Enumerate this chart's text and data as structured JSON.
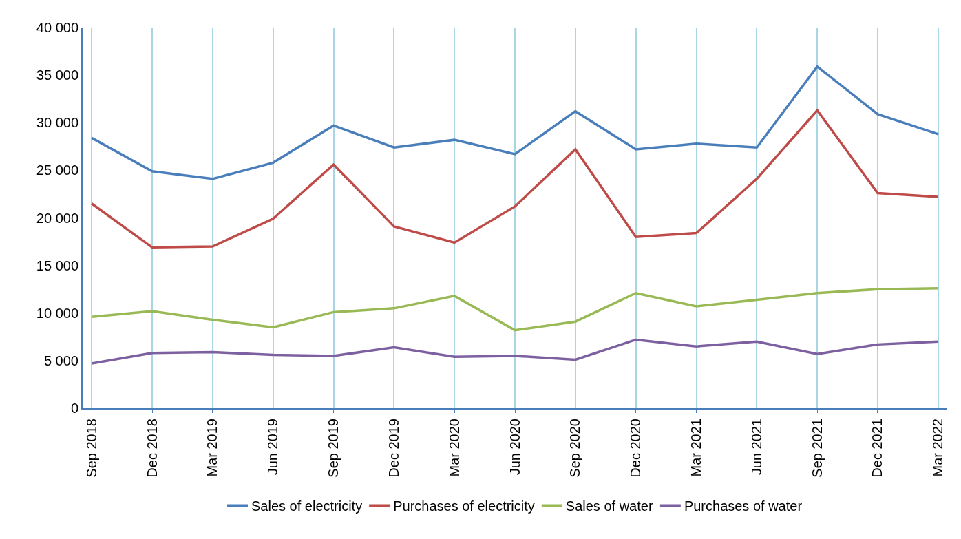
{
  "chart_data": {
    "type": "line",
    "categories": [
      "Sep 2018",
      "Dec 2018",
      "Mar 2019",
      "Jun 2019",
      "Sep 2019",
      "Dec 2019",
      "Mar 2020",
      "Jun 2020",
      "Sep 2020",
      "Dec 2020",
      "Mar 2021",
      "Jun 2021",
      "Sep 2021",
      "Dec 2021",
      "Mar 2022"
    ],
    "series": [
      {
        "name": "Sales of electricity",
        "color": "#4a7ebb",
        "values": [
          28400,
          24900,
          24100,
          25800,
          29700,
          27400,
          28200,
          26700,
          31200,
          27200,
          27800,
          27400,
          35900,
          30900,
          28800
        ]
      },
      {
        "name": "Purchases of electricity",
        "color": "#be4b48",
        "values": [
          21500,
          16900,
          17000,
          19900,
          25600,
          19100,
          17400,
          21200,
          27200,
          18000,
          18400,
          24100,
          31300,
          22600,
          22200
        ]
      },
      {
        "name": "Sales of water",
        "color": "#98b954",
        "values": [
          9600,
          10200,
          9300,
          8500,
          10100,
          10500,
          11800,
          8200,
          9100,
          12100,
          10700,
          11400,
          12100,
          12500,
          12600
        ]
      },
      {
        "name": "Purchases of water",
        "color": "#7d60a0",
        "values": [
          4700,
          5800,
          5900,
          5600,
          5500,
          6400,
          5400,
          5500,
          5100,
          7200,
          6500,
          7000,
          5700,
          6700,
          7000
        ]
      }
    ],
    "ylim": [
      0,
      40000
    ],
    "yticks": [
      0,
      {
        "value": 5000,
        "label": "5 000"
      },
      {
        "value": 10000,
        "label": "10 000"
      },
      {
        "value": 15000,
        "label": "15 000"
      },
      {
        "value": 20000,
        "label": "20 000"
      },
      {
        "value": 25000,
        "label": "25 000"
      },
      {
        "value": 30000,
        "label": "30 000"
      },
      {
        "value": 35000,
        "label": "35 000"
      },
      {
        "value": 40000,
        "label": "40 000"
      }
    ],
    "grid": "x",
    "legend": "bottom",
    "marker": "none",
    "line_style": "solid"
  }
}
